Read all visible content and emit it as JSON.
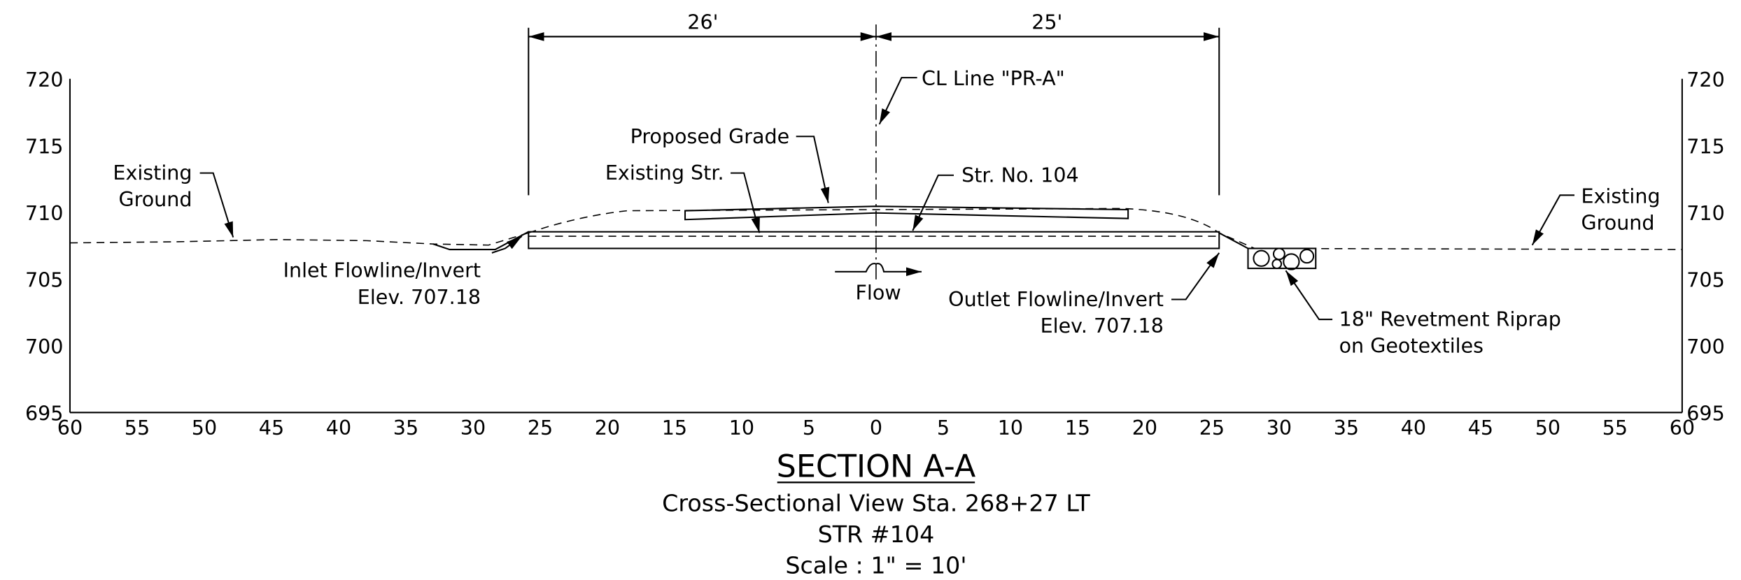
{
  "dimensions": {
    "left": "26'",
    "right": "25'"
  },
  "y_axis_labels": [
    "720",
    "715",
    "710",
    "705",
    "700",
    "695"
  ],
  "x_axis_labels": [
    "60",
    "55",
    "50",
    "45",
    "40",
    "35",
    "30",
    "25",
    "20",
    "15",
    "10",
    "5",
    "0",
    "5",
    "10",
    "15",
    "20",
    "25",
    "30",
    "35",
    "40",
    "45",
    "50",
    "55",
    "60"
  ],
  "annotations": {
    "cl_line": "CL Line \"PR-A\"",
    "proposed_grade": "Proposed Grade",
    "existing_str": "Existing Str.",
    "str_no": "Str. No. 104",
    "existing_ground_left": [
      "Existing",
      "Ground"
    ],
    "existing_ground_right": [
      "Existing",
      "Ground"
    ],
    "inlet": [
      "Inlet Flowline/Invert",
      "Elev. 707.18"
    ],
    "outlet": [
      "Outlet Flowline/Invert",
      "Elev. 707.18"
    ],
    "flow": "Flow",
    "riprap": [
      "18\" Revetment Riprap",
      "on Geotextiles"
    ]
  },
  "title": {
    "heading": "SECTION A-A",
    "lines": [
      "Cross-Sectional View Sta. 268+27 LT",
      "STR #104",
      "Scale : 1\" = 10'"
    ]
  }
}
